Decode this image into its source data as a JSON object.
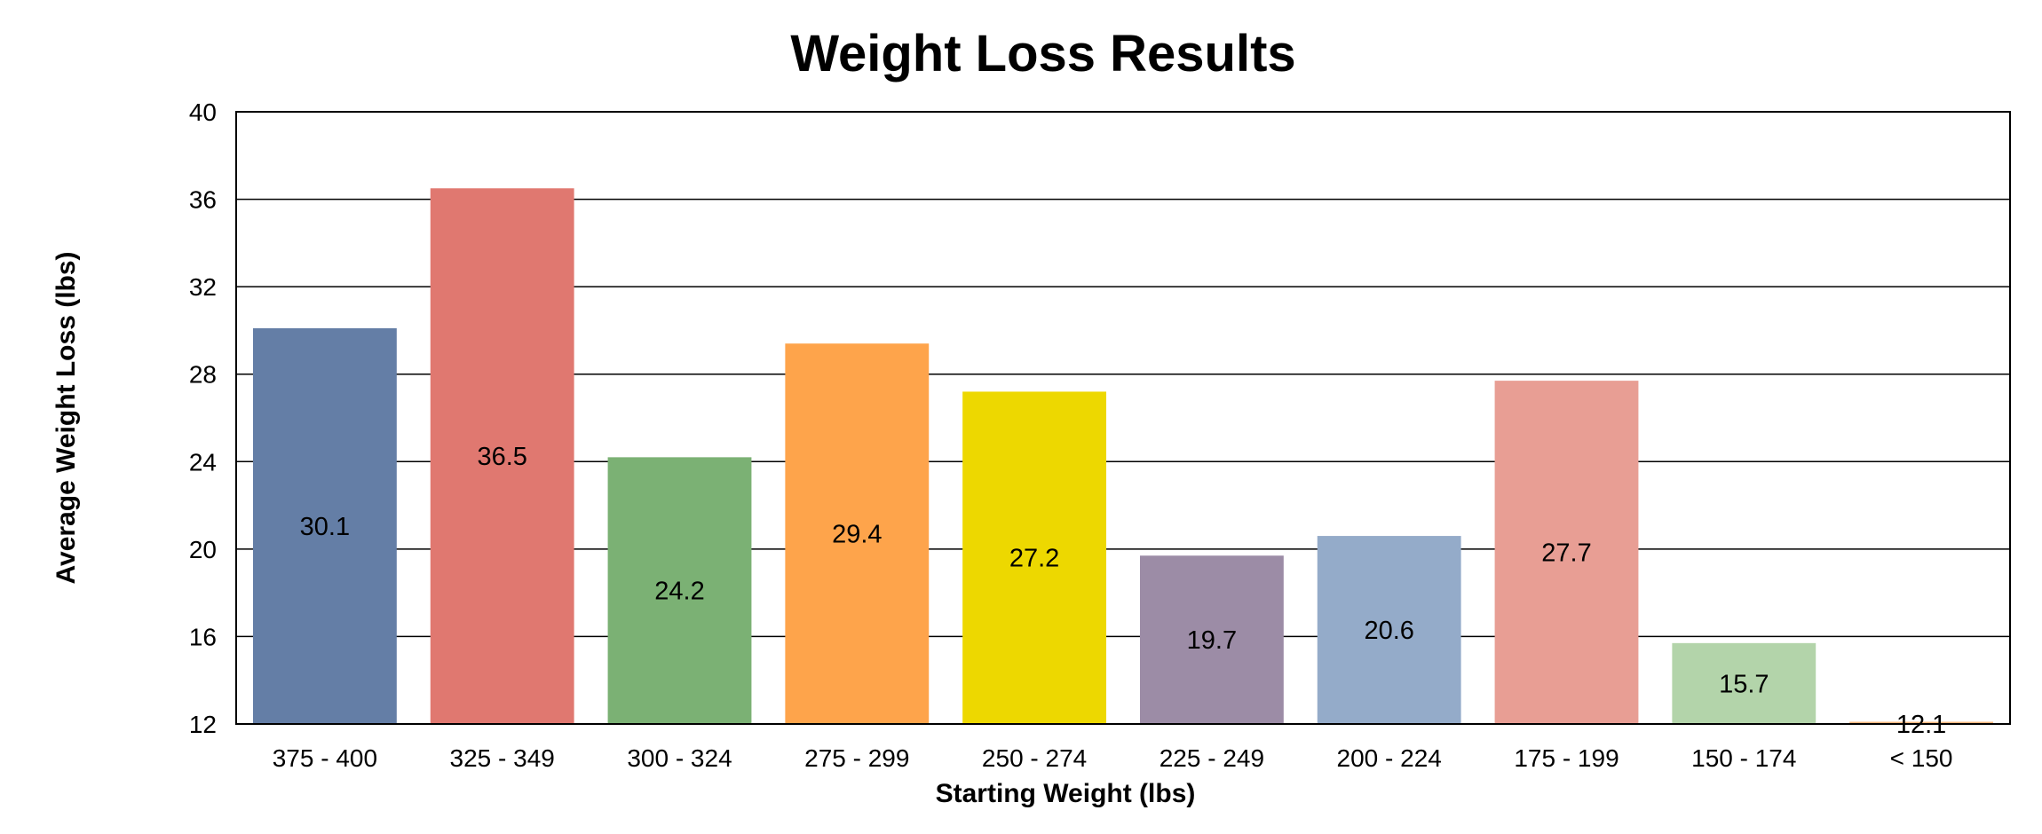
{
  "chart_data": {
    "type": "bar",
    "title": "Weight Loss Results",
    "xlabel": "Starting Weight (lbs)",
    "ylabel": "Average Weight Loss (lbs)",
    "categories": [
      "375 - 400",
      "325 - 349",
      "300 - 324",
      "275 - 299",
      "250 - 274",
      "225 - 249",
      "200 - 224",
      "175 - 199",
      "150 - 174",
      "< 150"
    ],
    "values": [
      30.1,
      36.5,
      24.2,
      29.4,
      27.2,
      19.7,
      20.6,
      27.7,
      15.7,
      12.1
    ],
    "value_labels": [
      "30.1",
      "36.5",
      "24.2",
      "29.4",
      "27.2",
      "19.7",
      "20.6",
      "27.7",
      "15.7",
      "12.1"
    ],
    "colors": [
      "#647ea6",
      "#e07870",
      "#7bb174",
      "#fea44b",
      "#edd800",
      "#9c8ca6",
      "#94abc9",
      "#e89e94",
      "#b3d4aa",
      "#f8b47a"
    ],
    "ylim": [
      12,
      40
    ],
    "yticks": [
      "12",
      "16",
      "20",
      "24",
      "28",
      "32",
      "36",
      "40"
    ],
    "grid": true,
    "legend": "none"
  }
}
